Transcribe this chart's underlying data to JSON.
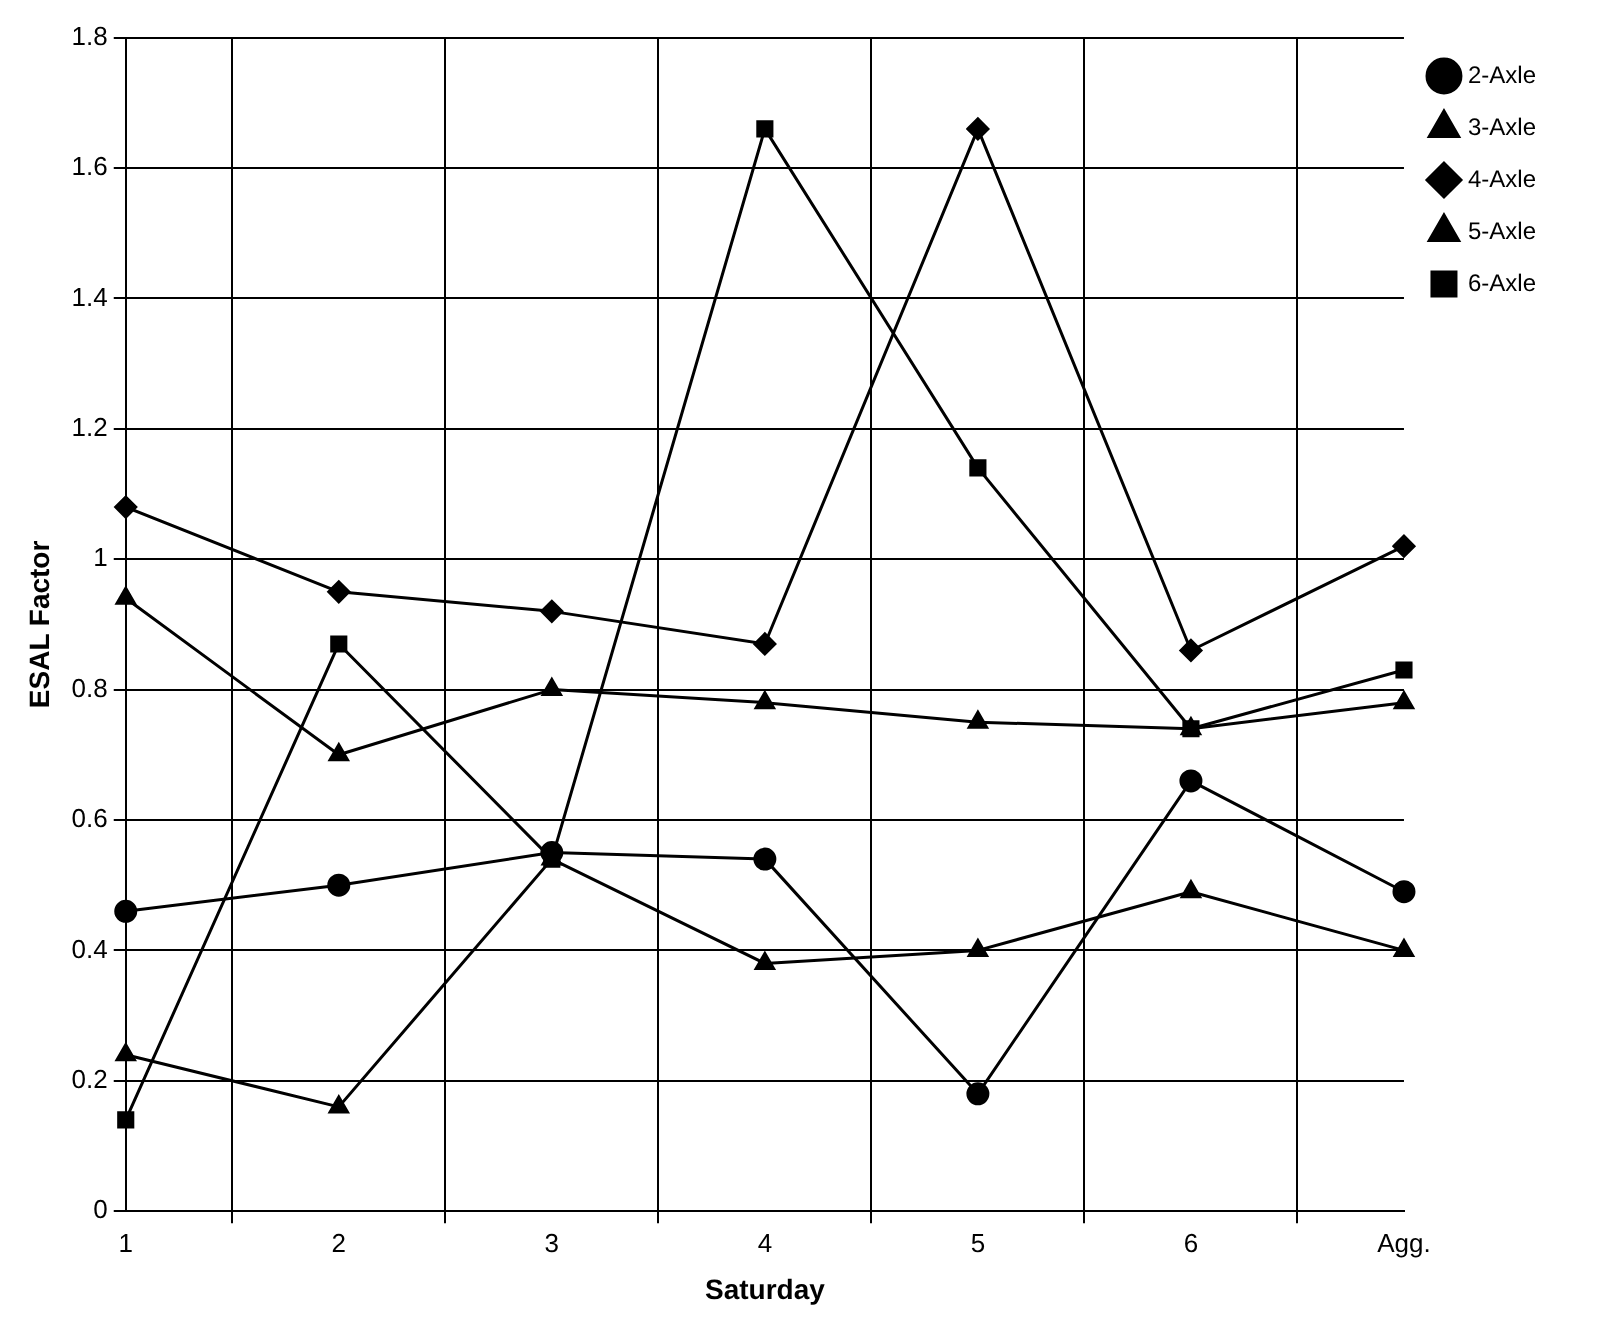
{
  "chart_data": {
    "type": "line",
    "xlabel": "Saturday",
    "ylabel": "ESAL Factor",
    "categories": [
      "1",
      "2",
      "3",
      "4",
      "5",
      "6",
      "Agg."
    ],
    "series": [
      {
        "name": "2-Axle",
        "color": "#000000",
        "marker": "circle",
        "values": [
          0.46,
          0.5,
          0.55,
          0.54,
          0.18,
          0.66,
          0.49
        ]
      },
      {
        "name": "3-Axle",
        "color": "#000000",
        "marker": "triangle",
        "values": [
          0.24,
          0.16,
          0.54,
          0.38,
          0.4,
          0.49,
          0.4
        ]
      },
      {
        "name": "4-Axle",
        "color": "#000000",
        "marker": "diamond",
        "values": [
          1.08,
          0.95,
          0.92,
          0.87,
          1.66,
          0.86,
          1.02
        ]
      },
      {
        "name": "5-Axle",
        "color": "#000000",
        "marker": "triangle",
        "values": [
          0.94,
          0.7,
          0.8,
          0.78,
          0.75,
          0.74,
          0.78
        ]
      },
      {
        "name": "6-Axle",
        "color": "#000000",
        "marker": "square",
        "values": [
          0.14,
          0.87,
          0.54,
          1.66,
          1.14,
          0.74,
          0.83
        ]
      }
    ],
    "ylim": [
      0,
      1.8
    ],
    "yticks": [
      0,
      0.2,
      0.4,
      0.6,
      0.8,
      1,
      1.2,
      1.4,
      1.6,
      1.8
    ],
    "grid": true,
    "legend": "top right",
    "line_style": "solid"
  }
}
